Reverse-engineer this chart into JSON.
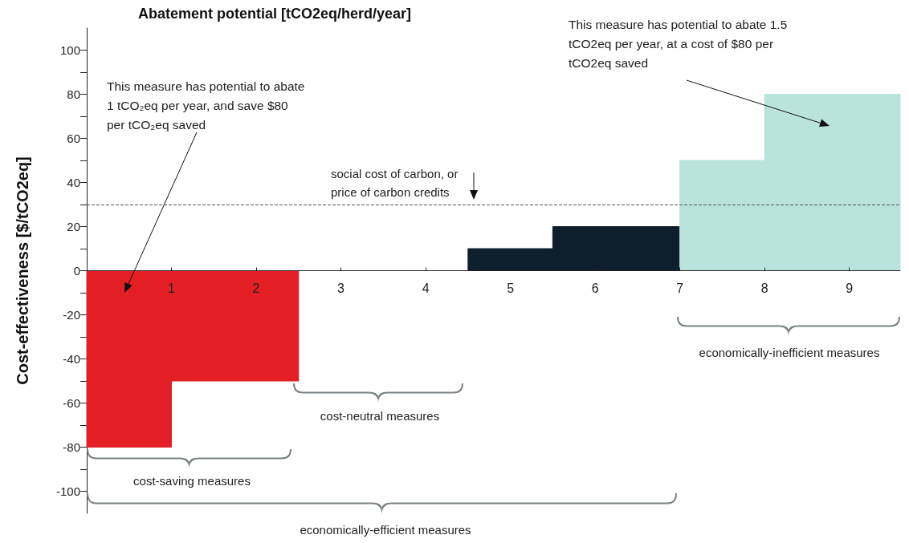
{
  "chart_data": {
    "type": "histogram",
    "xlabel": "Abatement potential [tCO2eq/herd/year]",
    "ylabel": "Cost-effectiveness [$/tCO2eq]",
    "bins": [
      0,
      1,
      2.5,
      4.5,
      5.5,
      7,
      8,
      9.6
    ],
    "values": [
      -80,
      -50,
      0,
      10,
      20,
      50,
      80
    ],
    "colors": [
      "#e31e24",
      "#e31e24",
      "#0d1f2d",
      "#0d1f2d",
      "#0d1f2d",
      "#bae3dc",
      "#bae3dc"
    ],
    "xlim": [
      0,
      9.6
    ],
    "xticks": [
      1,
      2,
      3,
      4,
      5,
      6,
      7,
      8,
      9
    ],
    "ylim": [
      -110,
      110
    ],
    "yticks": [
      -100,
      {
        "value": -90,
        "label": null
      },
      -80,
      {
        "value": -70,
        "label": null
      },
      -60,
      {
        "value": -50,
        "label": null
      },
      -40,
      {
        "value": -30,
        "label": null
      },
      -20,
      {
        "value": -10,
        "label": null
      },
      0,
      {
        "value": 10,
        "label": null
      },
      20,
      {
        "value": 30,
        "label": null
      },
      40,
      {
        "value": 50,
        "label": null
      },
      60,
      {
        "value": 70,
        "label": null
      },
      80,
      {
        "value": 90,
        "label": null
      },
      100
    ],
    "grid": false,
    "ref_lines": [
      {
        "axis": "y",
        "value": 30,
        "label": "social cost of carbon, or\nprice of carbon credits",
        "color": "#555555",
        "line_style": "dashed"
      }
    ],
    "annotations": [
      "This measure has potential to abate 1 tCO₂eq per year, and save $80 per tCO₂eq saved",
      "This measure has potential to abate 1.5 tCO2eq per year, at a cost of $80 per tCO2eq saved",
      "cost-saving measures",
      "cost-neutral measures",
      "economically-inefficient measures",
      "economically-efficient measures"
    ]
  }
}
